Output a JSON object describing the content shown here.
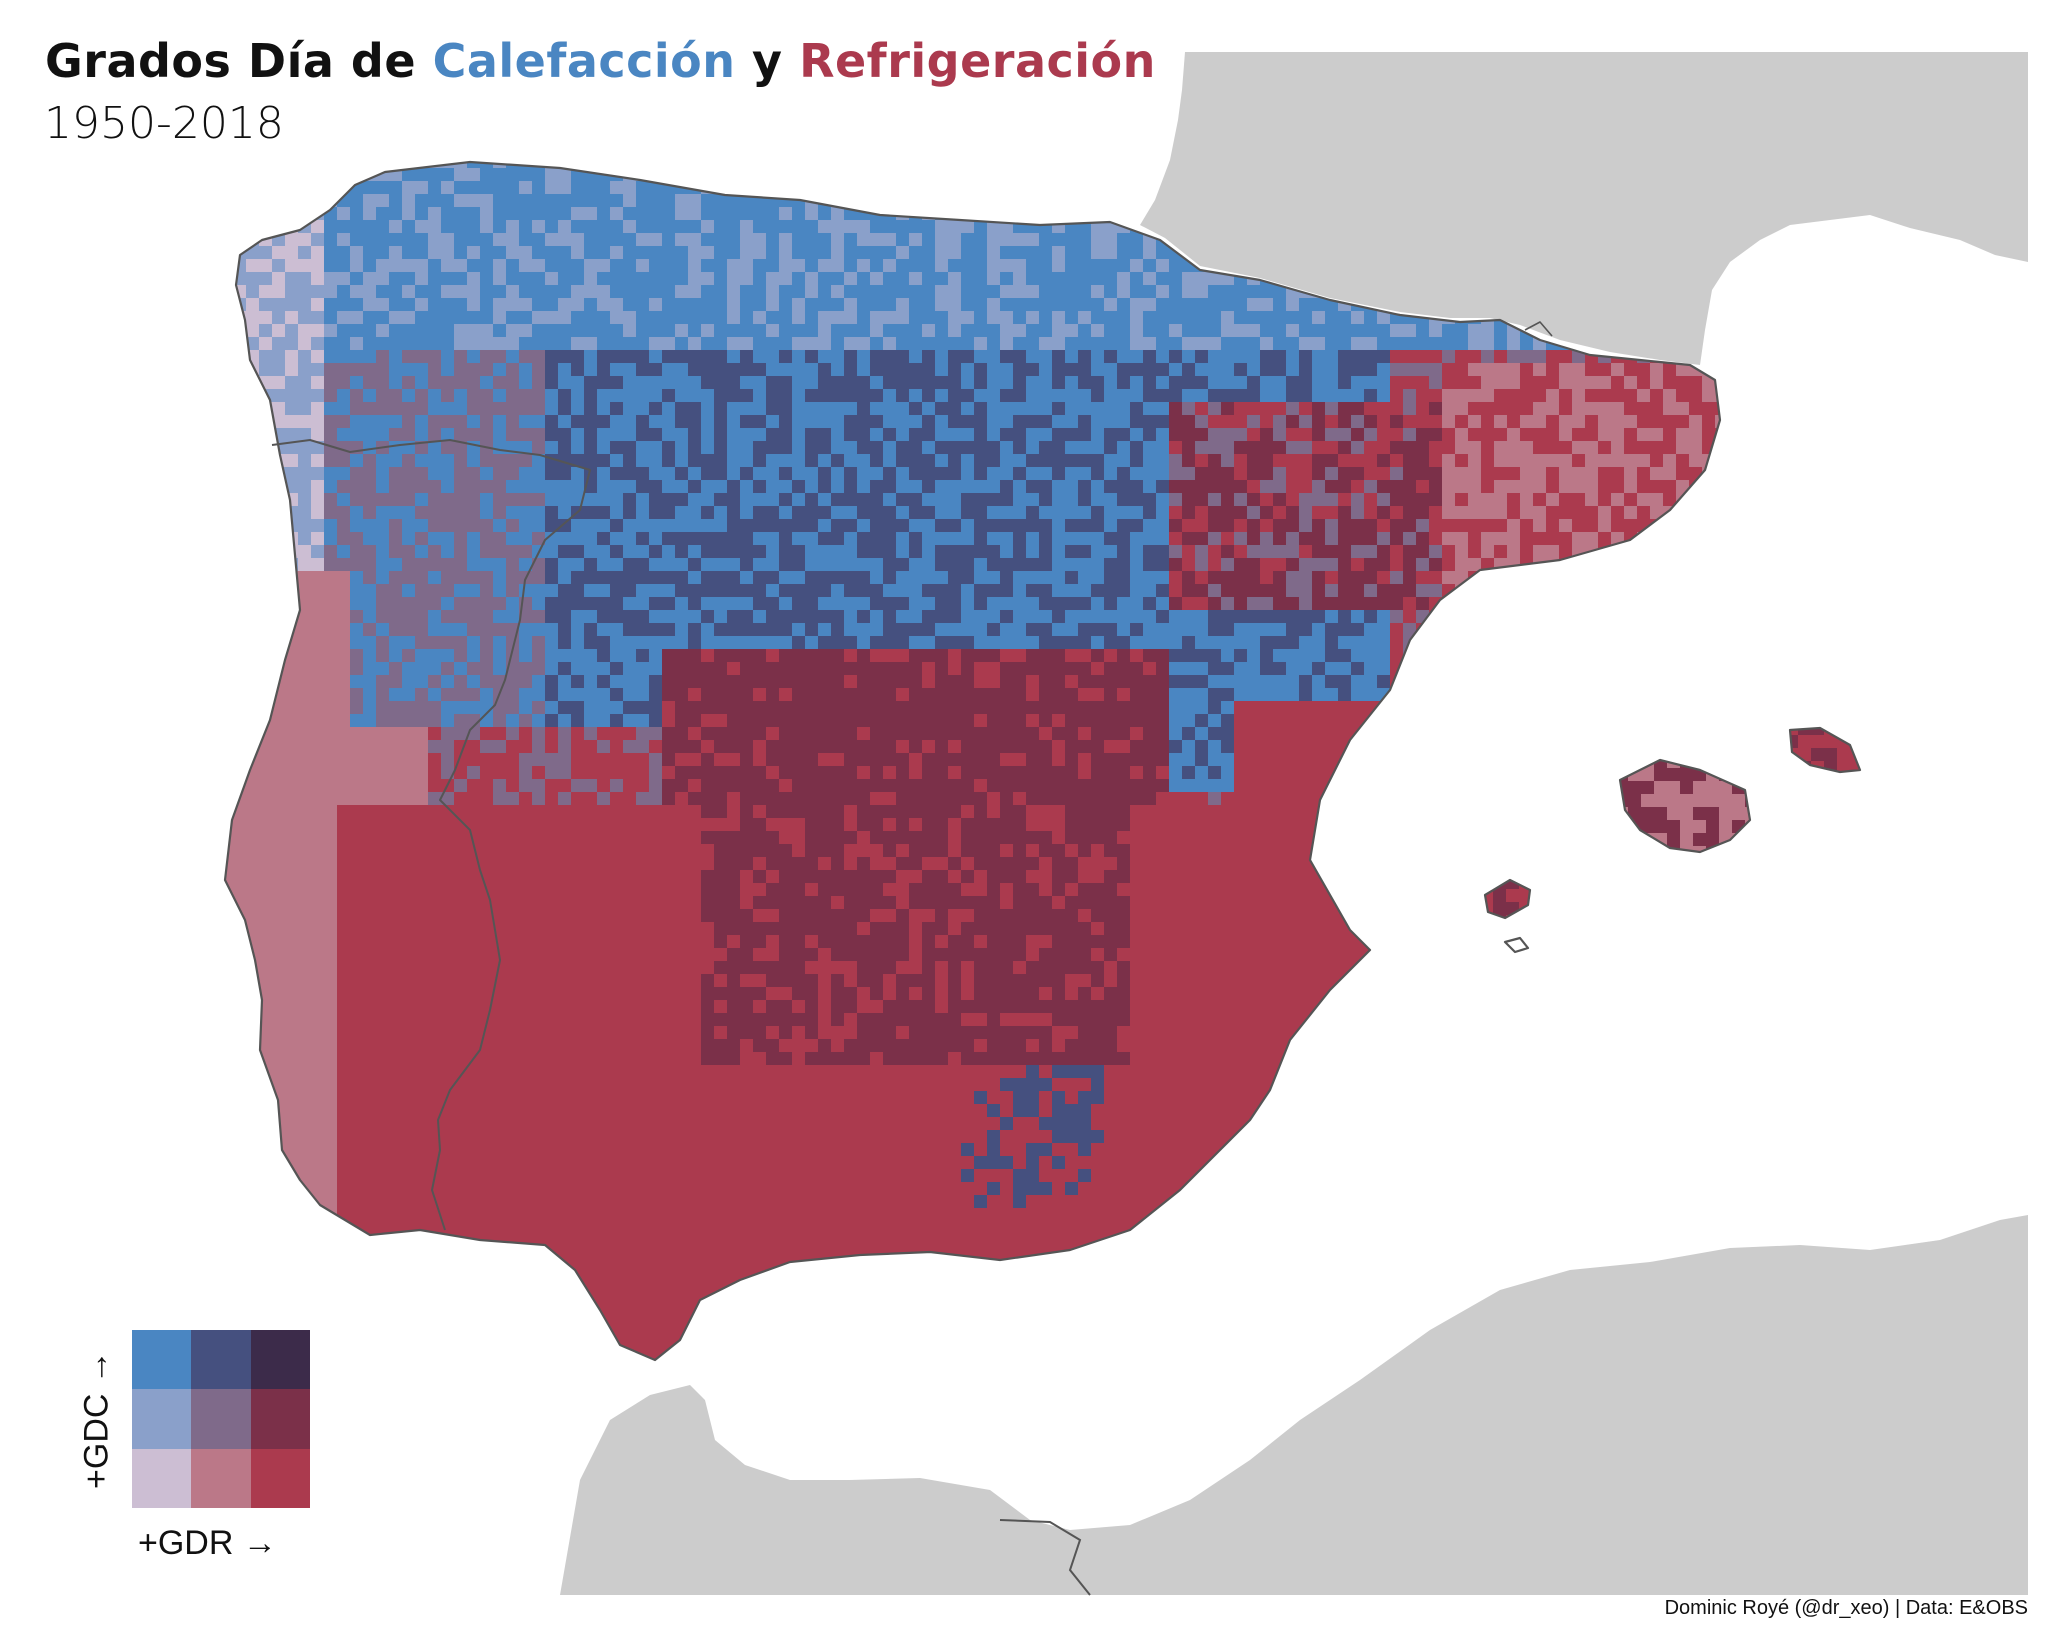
{
  "title": {
    "prefix": "Grados Día de ",
    "heating_word": "Calefacción",
    "connector": " y ",
    "cooling_word": "Refrigeración"
  },
  "subtitle": "1950-2018",
  "credit": "Dominic Royé (@dr_xeo) | Data: E&OBS",
  "legend": {
    "y_label": "+GDC →",
    "x_label": "+GDR →",
    "palette_rows_top_to_bottom": [
      [
        "#4a86c2",
        "#45507f",
        "#3c2b4a"
      ],
      [
        "#8aa0ca",
        "#7f6a8a",
        "#7b3049"
      ],
      [
        "#ccbed3",
        "#bb7888",
        "#ab3a4e"
      ]
    ]
  },
  "colors": {
    "land_background": "#cccccc",
    "coastline": "#555555",
    "sea": "#ffffff",
    "heating_accent": "#4a86c2",
    "cooling_accent": "#ab3a4e"
  }
}
